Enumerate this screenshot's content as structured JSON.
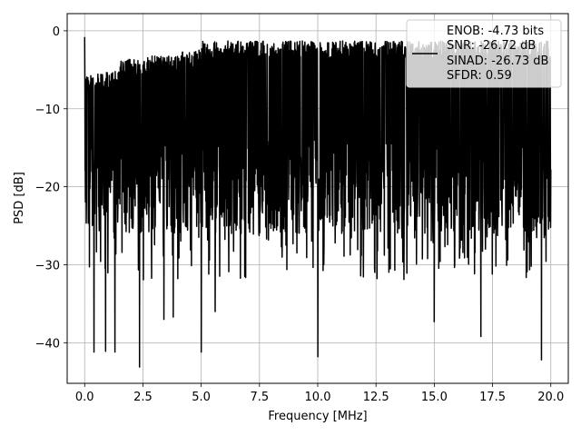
{
  "chart_data": {
    "type": "line",
    "title": "",
    "xlabel": "Frequency [MHz]",
    "ylabel": "PSD [dB]",
    "xlim": [
      -0.75,
      20.75
    ],
    "ylim": [
      -45.2,
      2.2
    ],
    "x_ticks": [
      0.0,
      2.5,
      5.0,
      7.5,
      10.0,
      12.5,
      15.0,
      17.5,
      20.0
    ],
    "x_tick_labels": [
      "0.0",
      "2.5",
      "5.0",
      "7.5",
      "10.0",
      "12.5",
      "15.0",
      "17.5",
      "20.0"
    ],
    "y_ticks": [
      0,
      -10,
      -20,
      -30,
      -40
    ],
    "y_tick_labels": [
      "0",
      "−10",
      "−20",
      "−30",
      "−40"
    ],
    "grid": true,
    "legend_position": "top-right",
    "legend_lines": [
      "ENOB: -4.73 bits",
      "SNR: -26.72 dB",
      "SINAD: -26.73 dB",
      "SFDR: 0.59"
    ],
    "series": [
      {
        "color": "#000000",
        "x_start": 0.0,
        "x_end": 20.0,
        "num_points": 2048,
        "max": -0.8,
        "min": -43.1,
        "deep_dips": [
          {
            "x": 0.4,
            "y": -41.2
          },
          {
            "x": 0.9,
            "y": -41.1
          },
          {
            "x": 1.3,
            "y": -41.2
          },
          {
            "x": 2.35,
            "y": -43.1
          },
          {
            "x": 3.4,
            "y": -37.0
          },
          {
            "x": 3.8,
            "y": -36.7
          },
          {
            "x": 5.0,
            "y": -41.2
          },
          {
            "x": 5.6,
            "y": -36.0
          },
          {
            "x": 10.0,
            "y": -41.8
          },
          {
            "x": 15.0,
            "y": -37.3
          },
          {
            "x": 17.0,
            "y": -39.2
          },
          {
            "x": 19.6,
            "y": -42.2
          }
        ]
      }
    ]
  }
}
